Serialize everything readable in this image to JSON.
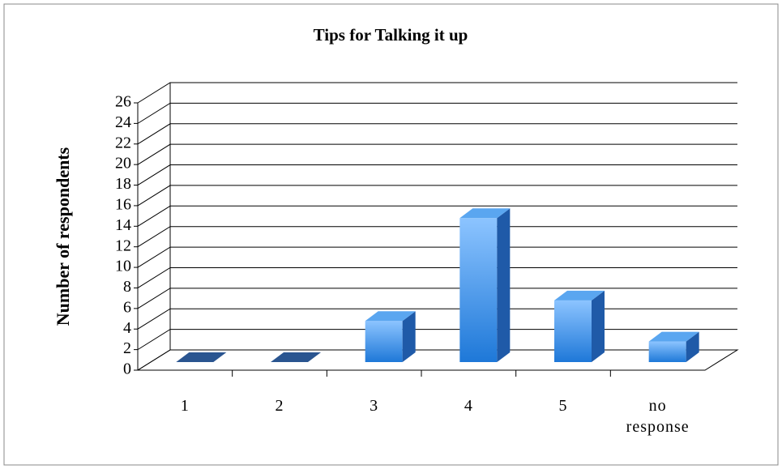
{
  "chart_data": {
    "type": "bar3d",
    "title": "Tips for Talking it up",
    "y_label": "Number of respondents",
    "categories": [
      "1",
      "2",
      "3",
      "4",
      "5",
      "no response"
    ],
    "values": [
      0,
      0,
      4,
      14,
      6,
      2
    ],
    "color": "#3d8fe0",
    "ylim": [
      0,
      26
    ],
    "yticks": [
      0,
      2,
      4,
      6,
      8,
      10,
      12,
      14,
      16,
      18,
      20,
      22,
      24,
      26
    ],
    "grid": true
  }
}
